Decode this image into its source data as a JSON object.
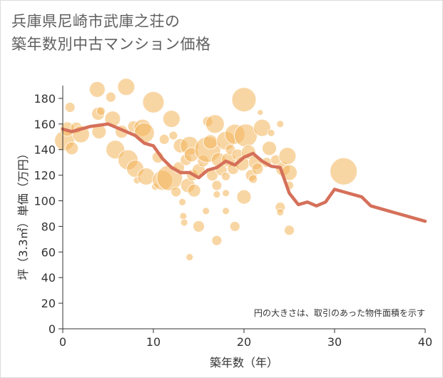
{
  "title_line1": "兵庫県尼崎市武庫之荘の",
  "title_line2": "築年数別中古マンション価格",
  "colors": {
    "bubble": "#f2b55a",
    "line": "#d5705a",
    "axis": "#333333"
  },
  "chart_data": {
    "type": "scatter",
    "xlabel": "築年数（年）",
    "ylabel": "坪（3.3㎡）単価（万円）",
    "xlim": [
      0,
      40
    ],
    "ylim": [
      0,
      190
    ],
    "xticks": [
      0,
      10,
      20,
      30,
      40
    ],
    "yticks": [
      0,
      20,
      40,
      60,
      80,
      100,
      120,
      140,
      160,
      180
    ],
    "grid": false,
    "note": "円の大きさは、取引のあった物件面積を示す",
    "bubbles": [
      {
        "x": 0.2,
        "y": 147,
        "s": 14
      },
      {
        "x": 0.5,
        "y": 156,
        "s": 10
      },
      {
        "x": 0.8,
        "y": 173,
        "s": 7
      },
      {
        "x": 1,
        "y": 141,
        "s": 9
      },
      {
        "x": 1.5,
        "y": 157,
        "s": 8
      },
      {
        "x": 2,
        "y": 152,
        "s": 12
      },
      {
        "x": 3.8,
        "y": 187,
        "s": 11
      },
      {
        "x": 3.9,
        "y": 168,
        "s": 9
      },
      {
        "x": 4,
        "y": 154,
        "s": 10
      },
      {
        "x": 4.2,
        "y": 170,
        "s": 6
      },
      {
        "x": 5.3,
        "y": 181,
        "s": 7
      },
      {
        "x": 5.5,
        "y": 164,
        "s": 11
      },
      {
        "x": 5.8,
        "y": 140,
        "s": 13
      },
      {
        "x": 6.5,
        "y": 154,
        "s": 9
      },
      {
        "x": 7,
        "y": 189,
        "s": 12
      },
      {
        "x": 7.2,
        "y": 132,
        "s": 14
      },
      {
        "x": 7.8,
        "y": 158,
        "s": 8
      },
      {
        "x": 8,
        "y": 125,
        "s": 12
      },
      {
        "x": 8.2,
        "y": 116,
        "s": 5
      },
      {
        "x": 8.8,
        "y": 157,
        "s": 12
      },
      {
        "x": 9,
        "y": 153,
        "s": 14
      },
      {
        "x": 9.2,
        "y": 119,
        "s": 12
      },
      {
        "x": 10,
        "y": 177,
        "s": 15
      },
      {
        "x": 10.2,
        "y": 111,
        "s": 5
      },
      {
        "x": 10.5,
        "y": 134,
        "s": 8
      },
      {
        "x": 11,
        "y": 116,
        "s": 14
      },
      {
        "x": 11.2,
        "y": 148,
        "s": 7
      },
      {
        "x": 11.8,
        "y": 118,
        "s": 18
      },
      {
        "x": 12,
        "y": 164,
        "s": 12
      },
      {
        "x": 12.2,
        "y": 151,
        "s": 6
      },
      {
        "x": 12.5,
        "y": 107,
        "s": 7
      },
      {
        "x": 12.8,
        "y": 126,
        "s": 8
      },
      {
        "x": 13,
        "y": 143,
        "s": 10
      },
      {
        "x": 13.2,
        "y": 99,
        "s": 5
      },
      {
        "x": 13.3,
        "y": 88,
        "s": 5
      },
      {
        "x": 13.4,
        "y": 83,
        "s": 5
      },
      {
        "x": 13.6,
        "y": 132,
        "s": 8
      },
      {
        "x": 13.8,
        "y": 112,
        "s": 10
      },
      {
        "x": 14,
        "y": 143,
        "s": 13
      },
      {
        "x": 14,
        "y": 56,
        "s": 5
      },
      {
        "x": 14.2,
        "y": 136,
        "s": 10
      },
      {
        "x": 14.3,
        "y": 120,
        "s": 8
      },
      {
        "x": 14.5,
        "y": 108,
        "s": 9
      },
      {
        "x": 15,
        "y": 124,
        "s": 9
      },
      {
        "x": 15,
        "y": 80,
        "s": 8
      },
      {
        "x": 15.5,
        "y": 131,
        "s": 8
      },
      {
        "x": 15.8,
        "y": 92,
        "s": 5
      },
      {
        "x": 16,
        "y": 140,
        "s": 18
      },
      {
        "x": 16,
        "y": 162,
        "s": 7
      },
      {
        "x": 16.3,
        "y": 146,
        "s": 10
      },
      {
        "x": 16.5,
        "y": 120,
        "s": 8
      },
      {
        "x": 16.8,
        "y": 160,
        "s": 13
      },
      {
        "x": 17,
        "y": 112,
        "s": 7
      },
      {
        "x": 17,
        "y": 105,
        "s": 5
      },
      {
        "x": 17,
        "y": 69,
        "s": 7
      },
      {
        "x": 17.2,
        "y": 132,
        "s": 10
      },
      {
        "x": 17.5,
        "y": 124,
        "s": 8
      },
      {
        "x": 18,
        "y": 147,
        "s": 13
      },
      {
        "x": 18,
        "y": 119,
        "s": 6
      },
      {
        "x": 18,
        "y": 106,
        "s": 5
      },
      {
        "x": 18,
        "y": 92,
        "s": 5
      },
      {
        "x": 18.3,
        "y": 132,
        "s": 10
      },
      {
        "x": 18.5,
        "y": 140,
        "s": 7
      },
      {
        "x": 18.8,
        "y": 125,
        "s": 8
      },
      {
        "x": 19,
        "y": 152,
        "s": 14
      },
      {
        "x": 19,
        "y": 80,
        "s": 7
      },
      {
        "x": 19.3,
        "y": 136,
        "s": 8
      },
      {
        "x": 19.8,
        "y": 129,
        "s": 10
      },
      {
        "x": 20,
        "y": 179,
        "s": 17
      },
      {
        "x": 20,
        "y": 103,
        "s": 10
      },
      {
        "x": 20.2,
        "y": 151,
        "s": 16
      },
      {
        "x": 20.5,
        "y": 138,
        "s": 10
      },
      {
        "x": 20.8,
        "y": 120,
        "s": 8
      },
      {
        "x": 21,
        "y": 117,
        "s": 6
      },
      {
        "x": 21.3,
        "y": 130,
        "s": 10
      },
      {
        "x": 21.5,
        "y": 125,
        "s": 8
      },
      {
        "x": 21.8,
        "y": 169,
        "s": 4
      },
      {
        "x": 22,
        "y": 157,
        "s": 12
      },
      {
        "x": 22.5,
        "y": 130,
        "s": 7
      },
      {
        "x": 22.8,
        "y": 141,
        "s": 10
      },
      {
        "x": 23,
        "y": 153,
        "s": 5
      },
      {
        "x": 23.5,
        "y": 132,
        "s": 7
      },
      {
        "x": 24,
        "y": 160,
        "s": 5
      },
      {
        "x": 24,
        "y": 95,
        "s": 7
      },
      {
        "x": 24,
        "y": 91,
        "s": 5
      },
      {
        "x": 24.3,
        "y": 125,
        "s": 10
      },
      {
        "x": 24.8,
        "y": 135,
        "s": 12
      },
      {
        "x": 25,
        "y": 122,
        "s": 11
      },
      {
        "x": 25,
        "y": 112,
        "s": 6
      },
      {
        "x": 25,
        "y": 77,
        "s": 7
      },
      {
        "x": 31,
        "y": 123,
        "s": 19
      }
    ],
    "series": [
      {
        "x": [
          0,
          1,
          2,
          3,
          4,
          5,
          6,
          7,
          8,
          9,
          10,
          11,
          12,
          13,
          14,
          15,
          16,
          17,
          18,
          19,
          20,
          21,
          22,
          23,
          24,
          25,
          26,
          27,
          28,
          29,
          30,
          31,
          32,
          33,
          34,
          35,
          36,
          37,
          38,
          39,
          40
        ],
        "values": [
          156,
          154,
          156,
          158,
          159,
          160,
          157,
          154,
          151,
          145,
          143,
          133,
          126,
          122,
          122,
          118,
          124,
          126,
          131,
          128,
          134,
          137,
          131,
          127,
          126,
          106,
          97,
          99,
          96,
          99,
          109,
          107,
          105,
          103,
          96,
          94,
          92,
          90,
          88,
          86,
          84
        ]
      }
    ]
  }
}
